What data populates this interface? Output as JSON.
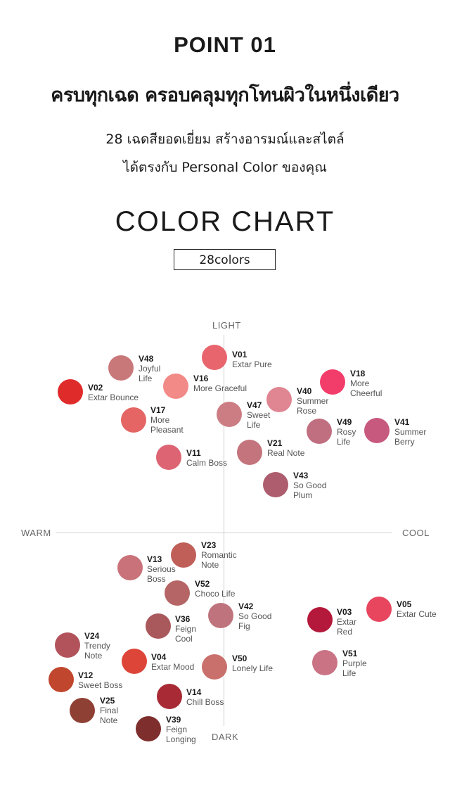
{
  "header": {
    "point": "POINT 01",
    "headline": "ครบทุกเฉด ครอบคลุมทุกโทนผิวในหนึ่งเดียว",
    "sub1": "28 เฉดสียอดเยี่ยม สร้างอารมณ์และสไตล์",
    "sub2": "ได้ตรงกับ Personal Color ของคุณ",
    "chart_title": "COLOR CHART",
    "badge": "28colors"
  },
  "axes": {
    "light": "LIGHT",
    "dark": "DARK",
    "warm": "WARM",
    "cool": "COOL"
  },
  "chart_data": {
    "type": "scatter",
    "title": "COLOR CHART",
    "x_axis": {
      "negative": "WARM",
      "positive": "COOL"
    },
    "y_axis": {
      "positive": "LIGHT",
      "negative": "DARK"
    },
    "points": [
      {
        "code": "V01",
        "name": "Extar Pure",
        "color": "#e8656d"
      },
      {
        "code": "V48",
        "name": "Joyful\nLife",
        "color": "#c9787a"
      },
      {
        "code": "V16",
        "name": "More Graceful",
        "color": "#f28a88"
      },
      {
        "code": "V02",
        "name": "Extar Bounce",
        "color": "#e02b2b"
      },
      {
        "code": "V17",
        "name": "More\nPleasant",
        "color": "#e56565"
      },
      {
        "code": "V18",
        "name": "More\nCheerful",
        "color": "#f23d6b"
      },
      {
        "code": "V40",
        "name": "Summer\nRose",
        "color": "#e08592"
      },
      {
        "code": "V47",
        "name": "Sweet\nLife",
        "color": "#cc7d83"
      },
      {
        "code": "V49",
        "name": "Rosy\nLife",
        "color": "#c06f80"
      },
      {
        "code": "V41",
        "name": "Summer\nBerry",
        "color": "#c7597f"
      },
      {
        "code": "V21",
        "name": "Real Note",
        "color": "#c4747c"
      },
      {
        "code": "V11",
        "name": "Calm Boss",
        "color": "#dd6473"
      },
      {
        "code": "V43",
        "name": "So Good\nPlum",
        "color": "#ad5d6d"
      },
      {
        "code": "V23",
        "name": "Romantic\nNote",
        "color": "#c05e58"
      },
      {
        "code": "V13",
        "name": "Serious\nBoss",
        "color": "#c97279"
      },
      {
        "code": "V52",
        "name": "Choco Life",
        "color": "#b56565"
      },
      {
        "code": "V42",
        "name": "So Good\nFig",
        "color": "#bf747d"
      },
      {
        "code": "V36",
        "name": "Feign\nCool",
        "color": "#a9585b"
      },
      {
        "code": "V05",
        "name": "Extar Cute",
        "color": "#e8455f"
      },
      {
        "code": "V03",
        "name": "Extar\nRed",
        "color": "#b4183a"
      },
      {
        "code": "V24",
        "name": "Trendy\nNote",
        "color": "#b2535c"
      },
      {
        "code": "V04",
        "name": "Extar Mood",
        "color": "#dd4539"
      },
      {
        "code": "V50",
        "name": "Lonely Life",
        "color": "#c9706c"
      },
      {
        "code": "V51",
        "name": "Purple\nLife",
        "color": "#c97385"
      },
      {
        "code": "V12",
        "name": "Sweet Boss",
        "color": "#c0462d"
      },
      {
        "code": "V14",
        "name": "Chill Boss",
        "color": "#a72a35"
      },
      {
        "code": "V25",
        "name": "Final\nNote",
        "color": "#8f4035"
      },
      {
        "code": "V39",
        "name": "Feign\nLonging",
        "color": "#7e2f2d"
      }
    ]
  }
}
